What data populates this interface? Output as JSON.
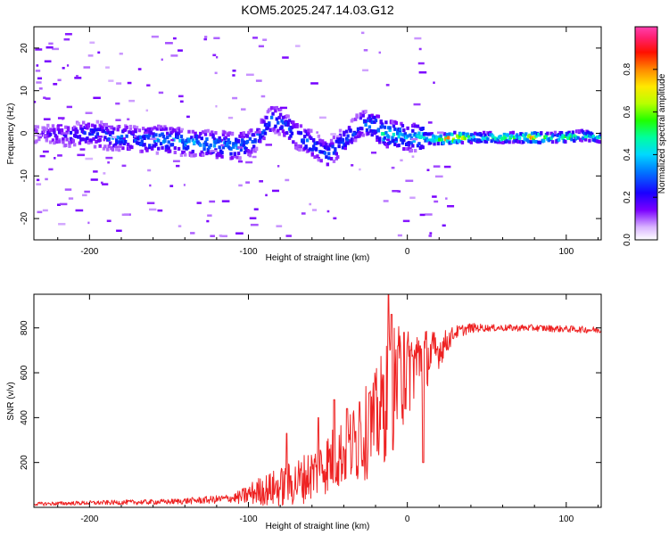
{
  "title": "KOM5.2025.247.14.03.G12",
  "chart_data": [
    {
      "type": "heatmap",
      "name": "spectrogram",
      "xlabel": "Height of straight line (km)",
      "ylabel": "Frequency (Hz)",
      "xlim": [
        -235,
        122
      ],
      "ylim": [
        -25,
        25
      ],
      "xticks": [
        -200,
        -100,
        0,
        100
      ],
      "xtick_labels": [
        "-200",
        "-100",
        "0",
        "100"
      ],
      "yticks": [
        -20,
        -10,
        0,
        10,
        20
      ],
      "ytick_labels": [
        "-20",
        "-10",
        "0",
        "10",
        "20"
      ],
      "colorbar": {
        "label": "Normalized spectral amplitude",
        "range": [
          0,
          1
        ],
        "ticks": [
          0.0,
          0.2,
          0.4,
          0.6,
          0.8
        ],
        "tick_labels": [
          "0.0",
          "0.2",
          "0.4",
          "0.6",
          "0.8"
        ],
        "colormap": "rainbow (white-violet-blue-cyan-green-yellow-orange-red-magenta)"
      },
      "ridge": [
        [
          -230,
          0.0,
          0.15
        ],
        [
          -215,
          -0.5,
          0.2
        ],
        [
          -200,
          0.0,
          0.25
        ],
        [
          -185,
          -1.0,
          0.3
        ],
        [
          -170,
          -1.5,
          0.3
        ],
        [
          -155,
          -1.5,
          0.35
        ],
        [
          -140,
          -2.0,
          0.35
        ],
        [
          -125,
          -2.5,
          0.35
        ],
        [
          -110,
          -3.0,
          0.35
        ],
        [
          -100,
          -2.5,
          0.3
        ],
        [
          -92,
          0.0,
          0.3
        ],
        [
          -85,
          3.5,
          0.3
        ],
        [
          -78,
          2.5,
          0.3
        ],
        [
          -72,
          0.0,
          0.3
        ],
        [
          -65,
          -1.5,
          0.3
        ],
        [
          -58,
          -3.0,
          0.3
        ],
        [
          -50,
          -5.0,
          0.3
        ],
        [
          -42,
          -2.5,
          0.3
        ],
        [
          -35,
          0.0,
          0.3
        ],
        [
          -28,
          2.5,
          0.3
        ],
        [
          -20,
          1.5,
          0.35
        ],
        [
          -15,
          0.0,
          0.45
        ],
        [
          -5,
          -0.5,
          0.4
        ],
        [
          0,
          -1.0,
          0.35
        ],
        [
          10,
          -1.0,
          0.45
        ],
        [
          20,
          -1.5,
          0.6
        ],
        [
          30,
          -1.0,
          0.9
        ],
        [
          40,
          -1.0,
          0.5
        ],
        [
          50,
          -1.0,
          0.45
        ],
        [
          60,
          -1.0,
          0.55
        ],
        [
          70,
          -1.0,
          0.45
        ],
        [
          80,
          -1.0,
          0.8
        ],
        [
          90,
          -1.0,
          0.45
        ],
        [
          100,
          -1.0,
          0.6
        ],
        [
          110,
          -0.5,
          0.45
        ],
        [
          120,
          -1.0,
          0.4
        ]
      ]
    },
    {
      "type": "line",
      "name": "snr",
      "xlabel": "Height of straight line (km)",
      "ylabel": "SNR (v/v)",
      "xlim": [
        -235,
        122
      ],
      "ylim": [
        0,
        950
      ],
      "xticks": [
        -200,
        -100,
        0,
        100
      ],
      "xtick_labels": [
        "-200",
        "-100",
        "0",
        "100"
      ],
      "yticks": [
        200,
        400,
        600,
        800
      ],
      "ytick_labels": [
        "200",
        "400",
        "600",
        "800"
      ],
      "color": "#ee2222",
      "envelope": [
        [
          -235,
          15
        ],
        [
          -200,
          20
        ],
        [
          -150,
          25
        ],
        [
          -120,
          35
        ],
        [
          -105,
          45
        ],
        [
          -95,
          70
        ],
        [
          -80,
          90
        ],
        [
          -70,
          110
        ],
        [
          -60,
          150
        ],
        [
          -50,
          200
        ],
        [
          -40,
          250
        ],
        [
          -30,
          300
        ],
        [
          -20,
          380
        ],
        [
          -15,
          450
        ],
        [
          -10,
          520
        ],
        [
          -5,
          560
        ],
        [
          0,
          600
        ],
        [
          5,
          650
        ],
        [
          10,
          660
        ],
        [
          20,
          700
        ],
        [
          30,
          780
        ],
        [
          40,
          800
        ],
        [
          60,
          800
        ],
        [
          80,
          800
        ],
        [
          100,
          795
        ],
        [
          122,
          790
        ]
      ],
      "noise": [
        [
          -235,
          8
        ],
        [
          -150,
          12
        ],
        [
          -110,
          20
        ],
        [
          -95,
          60
        ],
        [
          -80,
          90
        ],
        [
          -60,
          120
        ],
        [
          -40,
          160
        ],
        [
          -20,
          230
        ],
        [
          -10,
          300
        ],
        [
          0,
          200
        ],
        [
          10,
          150
        ],
        [
          20,
          80
        ],
        [
          30,
          30
        ],
        [
          50,
          15
        ],
        [
          122,
          15
        ]
      ],
      "peaks": [
        [
          -76,
          330
        ],
        [
          -56,
          400
        ],
        [
          -46,
          480
        ],
        [
          -38,
          440
        ],
        [
          -30,
          470
        ],
        [
          -24,
          510
        ],
        [
          -12,
          950
        ],
        [
          -10,
          860
        ],
        [
          -6,
          720
        ],
        [
          -2,
          780
        ],
        [
          2,
          700
        ],
        [
          8,
          720
        ],
        [
          10,
          200
        ]
      ]
    }
  ]
}
